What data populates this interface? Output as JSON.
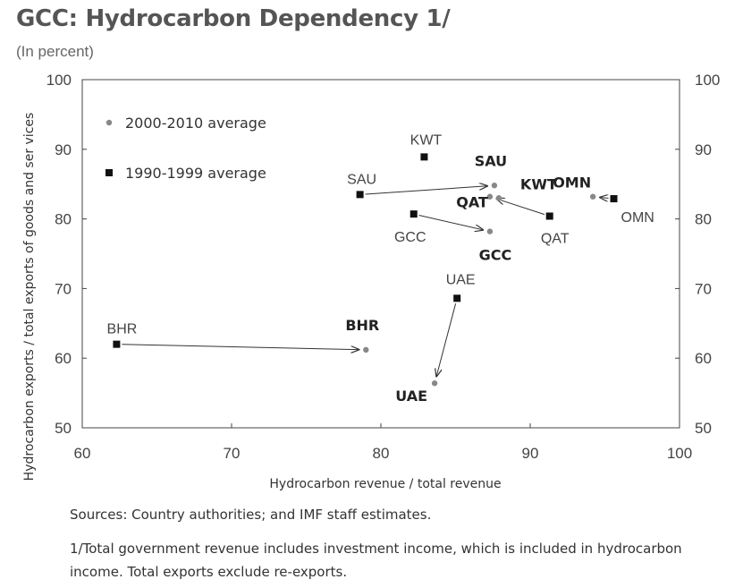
{
  "header": {
    "title": "GCC: Hydrocarbon Dependency 1/",
    "subtitle": "(In percent)"
  },
  "chart_data": {
    "type": "scatter",
    "xlabel": "Hydrocarbon revenue / total revenue",
    "ylabel": "Hydrocarbon exports / total exports of goods and ser vices",
    "xlim": [
      60,
      100
    ],
    "ylim": [
      50,
      100
    ],
    "x_ticks": [
      "60",
      "70",
      "80",
      "90",
      "100"
    ],
    "y_ticks": [
      "50",
      "60",
      "70",
      "80",
      "90",
      "100"
    ],
    "right_axis_ticks": [
      "50",
      "60",
      "70",
      "80",
      "90",
      "100"
    ],
    "grid": false,
    "legend_position": "top-left",
    "series": [
      {
        "name": "2000-2010 average",
        "marker": "circle",
        "color": "#888888",
        "points": [
          {
            "label": "SAU",
            "x": 87.6,
            "y": 84.8
          },
          {
            "label": "KWT",
            "x": 87.9,
            "y": 83.0
          },
          {
            "label": "QAT",
            "x": 87.3,
            "y": 83.2
          },
          {
            "label": "OMN",
            "x": 94.2,
            "y": 83.2
          },
          {
            "label": "GCC",
            "x": 87.3,
            "y": 78.2
          },
          {
            "label": "BHR",
            "x": 79.0,
            "y": 61.2
          },
          {
            "label": "UAE",
            "x": 83.6,
            "y": 56.4
          }
        ]
      },
      {
        "name": "1990-1999 average",
        "marker": "square",
        "color": "#111111",
        "points": [
          {
            "label": "KWT",
            "x": 82.9,
            "y": 88.9
          },
          {
            "label": "SAU",
            "x": 78.6,
            "y": 83.5
          },
          {
            "label": "OMN",
            "x": 95.6,
            "y": 82.9
          },
          {
            "label": "QAT",
            "x": 91.3,
            "y": 80.4
          },
          {
            "label": "GCC",
            "x": 82.2,
            "y": 80.7
          },
          {
            "label": "UAE",
            "x": 85.1,
            "y": 68.6
          },
          {
            "label": "BHR",
            "x": 62.3,
            "y": 62.0
          }
        ]
      }
    ],
    "arrows": [
      {
        "from": "SAU",
        "from_series": 1,
        "to_series": 0
      },
      {
        "from": "QAT",
        "from_series": 1,
        "to_series": 0
      },
      {
        "from": "OMN",
        "from_series": 1,
        "to_series": 0
      },
      {
        "from": "GCC",
        "from_series": 1,
        "to_series": 0
      },
      {
        "from": "UAE",
        "from_series": 1,
        "to_series": 0
      },
      {
        "from": "BHR",
        "from_series": 1,
        "to_series": 0
      }
    ]
  },
  "notes": {
    "sources": "Sources: Country authorities; and IMF staff estimates.",
    "footnote": "1/Total government revenue includes investment income, which is included in hydrocarbon income. Total exports exclude re-exports."
  }
}
